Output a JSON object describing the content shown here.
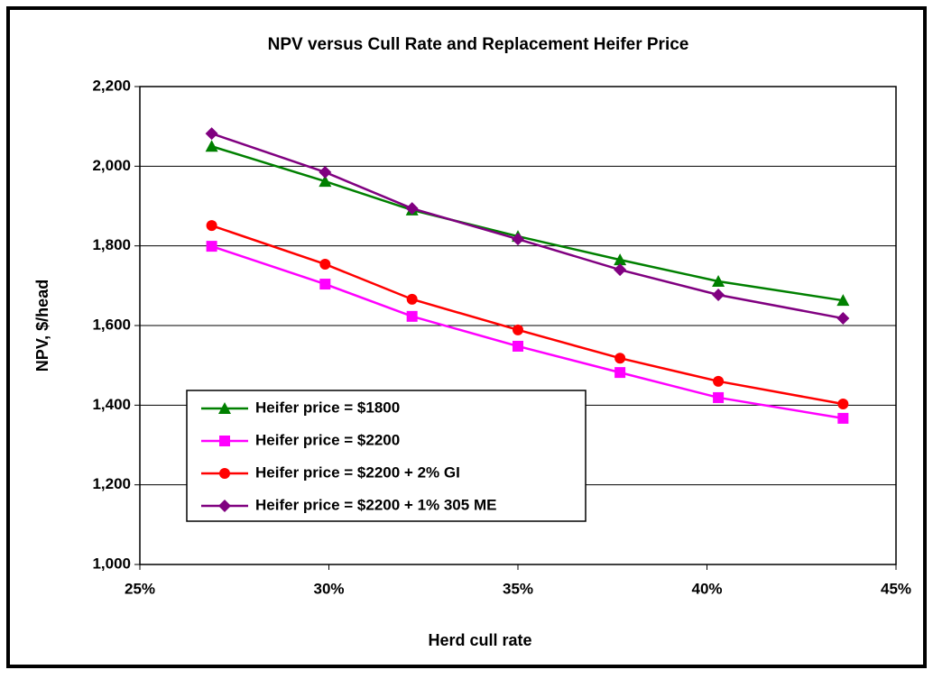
{
  "chart_data": {
    "type": "line",
    "title": "NPV versus Cull Rate and Replacement Heifer Price",
    "x_label": "Herd cull rate",
    "y_label": "NPV, $/head",
    "x": [
      26.9,
      29.9,
      32.2,
      35.0,
      37.7,
      40.3,
      43.6
    ],
    "series": [
      {
        "name": "Heifer price = $1800",
        "color": "#008000",
        "marker": "triangle",
        "values": [
          2050,
          1962,
          1890,
          1824,
          1765,
          1711,
          1663
        ]
      },
      {
        "name": "Heifer price = $2200",
        "color": "#ff00ff",
        "marker": "square",
        "values": [
          1799,
          1704,
          1623,
          1548,
          1482,
          1419,
          1367
        ]
      },
      {
        "name": "Heifer price = $2200 + 2% GI",
        "color": "#ff0000",
        "marker": "circle",
        "values": [
          1851,
          1754,
          1666,
          1589,
          1518,
          1460,
          1403
        ]
      },
      {
        "name": "Heifer price = $2200 + 1% 305 ME",
        "color": "#800080",
        "marker": "diamond",
        "values": [
          2082,
          1985,
          1894,
          1817,
          1740,
          1677,
          1618
        ]
      }
    ],
    "xlim": [
      25,
      45
    ],
    "xticks": [
      {
        "value": 25,
        "label": "25%"
      },
      {
        "value": 30,
        "label": "30%"
      },
      {
        "value": 35,
        "label": "35%"
      },
      {
        "value": 40,
        "label": "40%"
      },
      {
        "value": 45,
        "label": "45%"
      }
    ],
    "ylim": [
      1000,
      2200
    ],
    "yticks": [
      {
        "value": 1000,
        "label": "1,000"
      },
      {
        "value": 1200,
        "label": "1,200"
      },
      {
        "value": 1400,
        "label": "1,400"
      },
      {
        "value": 1600,
        "label": "1,600"
      },
      {
        "value": 1800,
        "label": "1,800"
      },
      {
        "value": 2000,
        "label": "2,000"
      },
      {
        "value": 2200,
        "label": "2,200"
      }
    ],
    "grid": true,
    "legend": "lower-left"
  }
}
